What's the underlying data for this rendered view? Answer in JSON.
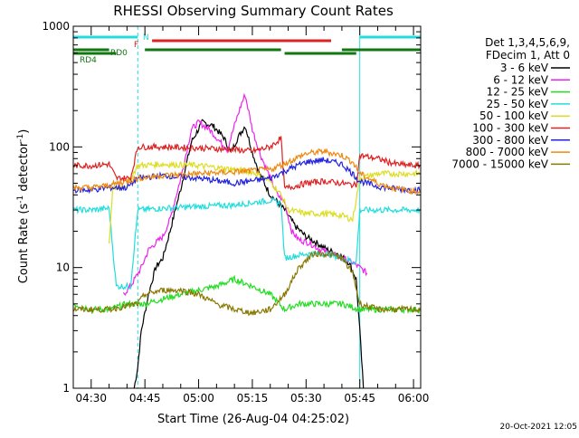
{
  "chart_data": {
    "type": "line",
    "title": "RHESSI Observing Summary Count Rates",
    "xlabel": "Start Time (26-Aug-04 04:25:02)",
    "ylabel": "Count Rate (s",
    "ylabel_sup1": "-1",
    "ylabel_mid": " detector",
    "ylabel_sup2": "-1",
    "ylabel_end": ")",
    "y_scale": "log",
    "ylim": [
      1,
      1000
    ],
    "xlim": [
      "04:25",
      "06:02"
    ],
    "x_ticks": [
      "04:30",
      "04:45",
      "05:00",
      "05:15",
      "05:30",
      "05:45",
      "06:00"
    ],
    "y_ticks": [
      "1",
      "10",
      "100",
      "1000"
    ],
    "grid": false,
    "timestamp": "20-Oct-2021 12:05",
    "legend_header": [
      "Det 1,3,4,5,6,9,",
      "FDecim 1, Att 0"
    ],
    "flag_labels": {
      "N": "N",
      "F": "F",
      "RD0": "RD0",
      "RD4": "RD4"
    },
    "flags": [
      {
        "label": "N",
        "color": "#22dddd",
        "y_frac": 0.12,
        "intervals": [
          [
            "04:25",
            "04:43"
          ],
          [
            "05:45",
            "06:02"
          ]
        ]
      },
      {
        "label": "F",
        "color": "#dd2222",
        "y_frac": 0.16,
        "intervals": [
          [
            "04:47",
            "05:37"
          ]
        ]
      },
      {
        "label": "RD0",
        "color": "#117711",
        "y_frac": 0.26,
        "intervals": [
          [
            "04:25",
            "04:35"
          ],
          [
            "04:45",
            "05:23"
          ],
          [
            "05:40",
            "06:02"
          ]
        ]
      },
      {
        "label": "RD4",
        "color": "#117711",
        "y_frac": 0.3,
        "intervals": [
          [
            "04:25",
            "04:37"
          ],
          [
            "05:24",
            "05:44"
          ]
        ]
      }
    ],
    "vlines": [
      {
        "time": "04:25",
        "color": "#22dddd",
        "style": "solid"
      },
      {
        "time": "04:43",
        "color": "#22dddd",
        "style": "dashed"
      },
      {
        "time": "05:45",
        "color": "#22dddd",
        "style": "solid"
      },
      {
        "time": "06:02",
        "color": "#22dddd",
        "style": "dashed"
      }
    ],
    "series": [
      {
        "name": "3 - 6 keV",
        "color": "#000000",
        "points": [
          [
            "04:42",
            1
          ],
          [
            "04:43",
            1.5
          ],
          [
            "04:44",
            3
          ],
          [
            "04:46",
            6
          ],
          [
            "04:48",
            10
          ],
          [
            "04:50",
            12
          ],
          [
            "04:52",
            20
          ],
          [
            "04:55",
            45
          ],
          [
            "04:58",
            110
          ],
          [
            "05:01",
            160
          ],
          [
            "05:04",
            150
          ],
          [
            "05:07",
            120
          ],
          [
            "05:09",
            90
          ],
          [
            "05:11",
            120
          ],
          [
            "05:13",
            150
          ],
          [
            "05:15",
            90
          ],
          [
            "05:17",
            60
          ],
          [
            "05:20",
            40
          ],
          [
            "05:22",
            35
          ],
          [
            "05:24",
            30
          ],
          [
            "05:27",
            22
          ],
          [
            "05:30",
            18
          ],
          [
            "05:33",
            16
          ],
          [
            "05:36",
            14
          ],
          [
            "05:39",
            13
          ],
          [
            "05:42",
            11
          ],
          [
            "05:44",
            8
          ],
          [
            "05:45",
            3
          ],
          [
            "05:46",
            1
          ]
        ]
      },
      {
        "name": "6 - 12 keV",
        "color": "#ee22ee",
        "points": [
          [
            "04:39",
            6
          ],
          [
            "04:41",
            7
          ],
          [
            "04:44",
            10
          ],
          [
            "04:46",
            14
          ],
          [
            "04:48",
            16
          ],
          [
            "04:50",
            18
          ],
          [
            "04:52",
            25
          ],
          [
            "04:55",
            55
          ],
          [
            "04:58",
            140
          ],
          [
            "05:00",
            160
          ],
          [
            "05:03",
            140
          ],
          [
            "05:06",
            110
          ],
          [
            "05:08",
            95
          ],
          [
            "05:10",
            150
          ],
          [
            "05:12",
            230
          ],
          [
            "05:13",
            270
          ],
          [
            "05:15",
            140
          ],
          [
            "05:17",
            90
          ],
          [
            "05:20",
            55
          ],
          [
            "05:22",
            40
          ],
          [
            "05:24",
            35
          ],
          [
            "05:26",
            20
          ],
          [
            "05:28",
            17
          ],
          [
            "05:31",
            16
          ],
          [
            "05:34",
            14
          ],
          [
            "05:37",
            13
          ],
          [
            "05:40",
            12
          ],
          [
            "05:43",
            11
          ],
          [
            "05:45",
            10
          ],
          [
            "05:47",
            9
          ]
        ]
      },
      {
        "name": "12 - 25 keV",
        "color": "#22dd22",
        "points": [
          [
            "04:25",
            5
          ],
          [
            "04:30",
            4.5
          ],
          [
            "04:35",
            4.5
          ],
          [
            "04:40",
            5
          ],
          [
            "04:43",
            5
          ],
          [
            "04:45",
            5
          ],
          [
            "04:50",
            5.5
          ],
          [
            "04:55",
            6
          ],
          [
            "05:00",
            6.5
          ],
          [
            "05:05",
            7
          ],
          [
            "05:10",
            8
          ],
          [
            "05:15",
            7
          ],
          [
            "05:20",
            6
          ],
          [
            "05:24",
            4.5
          ],
          [
            "05:28",
            5
          ],
          [
            "05:32",
            5
          ],
          [
            "05:36",
            5
          ],
          [
            "05:40",
            5
          ],
          [
            "05:45",
            4.5
          ],
          [
            "05:50",
            4.5
          ],
          [
            "05:55",
            4.5
          ],
          [
            "06:00",
            4.5
          ],
          [
            "06:02",
            4.5
          ]
        ]
      },
      {
        "name": "25 - 50 keV",
        "color": "#22dddd",
        "points": [
          [
            "04:25",
            30
          ],
          [
            "04:30",
            30
          ],
          [
            "04:35",
            31
          ],
          [
            "04:37",
            7
          ],
          [
            "04:41",
            7
          ],
          [
            "04:43",
            30
          ],
          [
            "04:50",
            31
          ],
          [
            "05:00",
            32
          ],
          [
            "05:10",
            33
          ],
          [
            "05:20",
            36
          ],
          [
            "05:23",
            34
          ],
          [
            "05:24",
            12
          ],
          [
            "05:30",
            13
          ],
          [
            "05:36",
            13
          ],
          [
            "05:40",
            12
          ],
          [
            "05:44",
            11
          ],
          [
            "05:45",
            30
          ],
          [
            "05:50",
            30
          ],
          [
            "05:55",
            30
          ],
          [
            "06:00",
            30
          ],
          [
            "06:02",
            30
          ]
        ]
      },
      {
        "name": "50 - 100 keV",
        "color": "#dddd22",
        "points": [
          [
            "04:35",
            15
          ],
          [
            "04:36",
            45
          ],
          [
            "04:40",
            48
          ],
          [
            "04:43",
            70
          ],
          [
            "04:50",
            72
          ],
          [
            "05:00",
            70
          ],
          [
            "05:10",
            65
          ],
          [
            "05:15",
            62
          ],
          [
            "05:20",
            52
          ],
          [
            "05:23",
            40
          ],
          [
            "05:25",
            30
          ],
          [
            "05:30",
            28
          ],
          [
            "05:35",
            28
          ],
          [
            "05:40",
            27
          ],
          [
            "05:43",
            25
          ],
          [
            "05:45",
            55
          ],
          [
            "05:50",
            60
          ],
          [
            "05:55",
            60
          ],
          [
            "06:00",
            60
          ],
          [
            "06:02",
            60
          ]
        ]
      },
      {
        "name": "100 - 300 keV",
        "color": "#dd2222",
        "points": [
          [
            "04:25",
            70
          ],
          [
            "04:30",
            70
          ],
          [
            "04:35",
            72
          ],
          [
            "04:37",
            55
          ],
          [
            "04:41",
            55
          ],
          [
            "04:43",
            100
          ],
          [
            "04:50",
            100
          ],
          [
            "05:00",
            98
          ],
          [
            "05:10",
            95
          ],
          [
            "05:15",
            92
          ],
          [
            "05:20",
            100
          ],
          [
            "05:23",
            118
          ],
          [
            "05:24",
            45
          ],
          [
            "05:30",
            50
          ],
          [
            "05:35",
            52
          ],
          [
            "05:40",
            50
          ],
          [
            "05:44",
            48
          ],
          [
            "05:45",
            85
          ],
          [
            "05:50",
            80
          ],
          [
            "05:55",
            72
          ],
          [
            "06:00",
            70
          ],
          [
            "06:02",
            70
          ]
        ]
      },
      {
        "name": "300 - 800 keV",
        "color": "#2222dd",
        "points": [
          [
            "04:25",
            44
          ],
          [
            "04:30",
            44
          ],
          [
            "04:35",
            46
          ],
          [
            "04:40",
            46
          ],
          [
            "04:43",
            55
          ],
          [
            "04:50",
            58
          ],
          [
            "05:00",
            55
          ],
          [
            "05:10",
            50
          ],
          [
            "05:20",
            55
          ],
          [
            "05:25",
            65
          ],
          [
            "05:30",
            75
          ],
          [
            "05:35",
            78
          ],
          [
            "05:40",
            72
          ],
          [
            "05:43",
            60
          ],
          [
            "05:45",
            52
          ],
          [
            "05:50",
            47
          ],
          [
            "05:55",
            45
          ],
          [
            "06:00",
            44
          ],
          [
            "06:02",
            44
          ]
        ]
      },
      {
        "name": "800 - 7000 keV",
        "color": "#ee8811",
        "points": [
          [
            "04:25",
            46
          ],
          [
            "04:30",
            46
          ],
          [
            "04:35",
            48
          ],
          [
            "04:40",
            52
          ],
          [
            "04:43",
            55
          ],
          [
            "04:50",
            58
          ],
          [
            "05:00",
            60
          ],
          [
            "05:10",
            62
          ],
          [
            "05:20",
            65
          ],
          [
            "05:25",
            75
          ],
          [
            "05:30",
            88
          ],
          [
            "05:35",
            92
          ],
          [
            "05:40",
            85
          ],
          [
            "05:43",
            75
          ],
          [
            "05:45",
            60
          ],
          [
            "05:50",
            50
          ],
          [
            "05:55",
            45
          ],
          [
            "06:00",
            43
          ],
          [
            "06:02",
            43
          ]
        ]
      },
      {
        "name": "7000 - 15000 keV",
        "color": "#887700",
        "points": [
          [
            "04:25",
            4.5
          ],
          [
            "04:30",
            4.5
          ],
          [
            "04:35",
            4.5
          ],
          [
            "04:40",
            4.8
          ],
          [
            "04:43",
            5
          ],
          [
            "04:45",
            6
          ],
          [
            "04:50",
            6.5
          ],
          [
            "04:55",
            6.5
          ],
          [
            "05:00",
            6
          ],
          [
            "05:05",
            5
          ],
          [
            "05:10",
            4.5
          ],
          [
            "05:15",
            4.2
          ],
          [
            "05:20",
            4.5
          ],
          [
            "05:24",
            6
          ],
          [
            "05:28",
            10
          ],
          [
            "05:32",
            13
          ],
          [
            "05:36",
            13
          ],
          [
            "05:40",
            12
          ],
          [
            "05:43",
            9
          ],
          [
            "05:45",
            5
          ],
          [
            "05:50",
            4.5
          ],
          [
            "05:55",
            4.5
          ],
          [
            "06:00",
            4.5
          ],
          [
            "06:02",
            4.5
          ]
        ]
      }
    ]
  }
}
